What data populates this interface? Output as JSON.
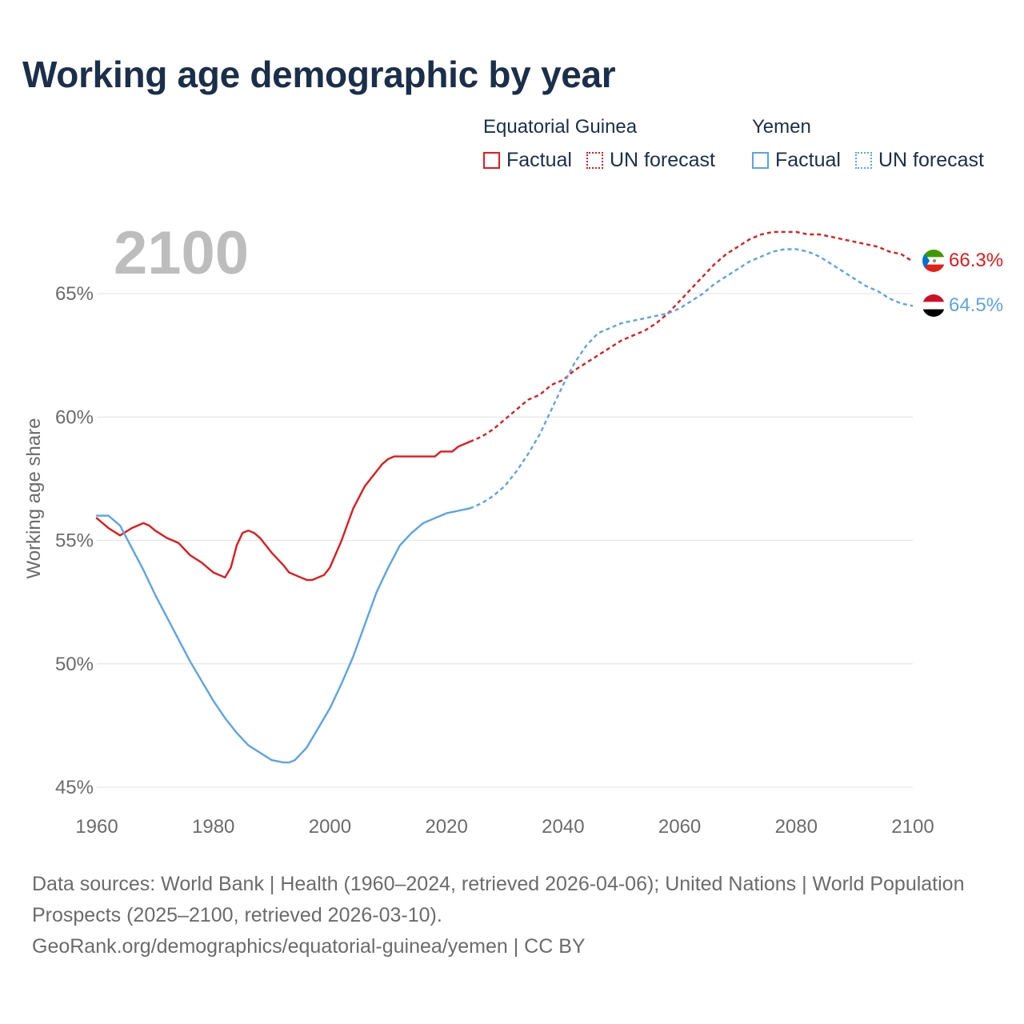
{
  "title": "Working age demographic by year",
  "year_label": "2100",
  "legend": {
    "groups": [
      {
        "name": "Equatorial Guinea",
        "color": "#e31a1c",
        "items": [
          {
            "label": "Factual",
            "style": "solid"
          },
          {
            "label": "UN forecast",
            "style": "dotted"
          }
        ]
      },
      {
        "name": "Yemen",
        "color": "#5ba4e6",
        "items": [
          {
            "label": "Factual",
            "style": "solid"
          },
          {
            "label": "UN forecast",
            "style": "dotted"
          }
        ]
      }
    ]
  },
  "footer": {
    "sources": "Data sources: World Bank | Health (1960–2024, retrieved 2026-04-06); United Nations | World Population Prospects (2025–2100, retrieved 2026-03-10).",
    "credit": "GeoRank.org/demographics/equatorial-guinea/yemen | CC BY"
  },
  "chart_data": {
    "type": "line",
    "title": "Working age demographic by year",
    "xlabel": "",
    "ylabel": "Working age share",
    "xlim": [
      1960,
      2100
    ],
    "ylim": [
      45,
      68
    ],
    "x_ticks": [
      1960,
      1980,
      2000,
      2020,
      2040,
      2060,
      2080,
      2100
    ],
    "x_tick_labels": [
      "1960",
      "1980",
      "2000",
      "2020",
      "2040",
      "2060",
      "2080",
      "2100"
    ],
    "y_ticks": [
      45,
      50,
      55,
      60,
      65
    ],
    "y_tick_labels": [
      "45%",
      "50%",
      "55%",
      "60%",
      "65%"
    ],
    "grid": true,
    "series": [
      {
        "name": "Equatorial Guinea",
        "kind": "Factual",
        "color": "#e31a1c",
        "dash": "solid",
        "points": [
          [
            1960,
            55.9
          ],
          [
            1962,
            55.5
          ],
          [
            1964,
            55.2
          ],
          [
            1966,
            55.5
          ],
          [
            1968,
            55.7
          ],
          [
            1969,
            55.6
          ],
          [
            1970,
            55.4
          ],
          [
            1972,
            55.1
          ],
          [
            1974,
            54.9
          ],
          [
            1976,
            54.4
          ],
          [
            1978,
            54.1
          ],
          [
            1980,
            53.7
          ],
          [
            1982,
            53.5
          ],
          [
            1983,
            53.9
          ],
          [
            1984,
            54.8
          ],
          [
            1985,
            55.3
          ],
          [
            1986,
            55.4
          ],
          [
            1987,
            55.3
          ],
          [
            1988,
            55.1
          ],
          [
            1990,
            54.5
          ],
          [
            1992,
            54.0
          ],
          [
            1993,
            53.7
          ],
          [
            1995,
            53.5
          ],
          [
            1996,
            53.4
          ],
          [
            1997,
            53.4
          ],
          [
            1999,
            53.6
          ],
          [
            2000,
            53.9
          ],
          [
            2002,
            55.0
          ],
          [
            2004,
            56.3
          ],
          [
            2006,
            57.2
          ],
          [
            2008,
            57.8
          ],
          [
            2009,
            58.1
          ],
          [
            2010,
            58.3
          ],
          [
            2011,
            58.4
          ],
          [
            2014,
            58.4
          ],
          [
            2016,
            58.4
          ],
          [
            2018,
            58.4
          ],
          [
            2019,
            58.6
          ],
          [
            2021,
            58.6
          ],
          [
            2022,
            58.8
          ],
          [
            2024,
            59.0
          ]
        ]
      },
      {
        "name": "Equatorial Guinea",
        "kind": "UN forecast",
        "color": "#e31a1c",
        "dash": "dashed",
        "points": [
          [
            2024,
            59.0
          ],
          [
            2026,
            59.2
          ],
          [
            2028,
            59.5
          ],
          [
            2030,
            59.9
          ],
          [
            2032,
            60.3
          ],
          [
            2034,
            60.7
          ],
          [
            2036,
            60.9
          ],
          [
            2038,
            61.3
          ],
          [
            2040,
            61.5
          ],
          [
            2042,
            61.9
          ],
          [
            2044,
            62.2
          ],
          [
            2046,
            62.5
          ],
          [
            2048,
            62.8
          ],
          [
            2050,
            63.1
          ],
          [
            2052,
            63.3
          ],
          [
            2054,
            63.5
          ],
          [
            2056,
            63.8
          ],
          [
            2058,
            64.2
          ],
          [
            2060,
            64.7
          ],
          [
            2062,
            65.2
          ],
          [
            2064,
            65.7
          ],
          [
            2066,
            66.2
          ],
          [
            2068,
            66.6
          ],
          [
            2070,
            66.9
          ],
          [
            2072,
            67.2
          ],
          [
            2074,
            67.4
          ],
          [
            2076,
            67.5
          ],
          [
            2078,
            67.5
          ],
          [
            2080,
            67.5
          ],
          [
            2082,
            67.4
          ],
          [
            2084,
            67.4
          ],
          [
            2086,
            67.3
          ],
          [
            2088,
            67.2
          ],
          [
            2090,
            67.1
          ],
          [
            2092,
            67.0
          ],
          [
            2094,
            66.9
          ],
          [
            2096,
            66.7
          ],
          [
            2098,
            66.6
          ],
          [
            2100,
            66.3
          ]
        ]
      },
      {
        "name": "Yemen",
        "kind": "Factual",
        "color": "#5ba4e6",
        "dash": "solid",
        "points": [
          [
            1960,
            56.0
          ],
          [
            1962,
            56.0
          ],
          [
            1964,
            55.6
          ],
          [
            1966,
            54.7
          ],
          [
            1968,
            53.8
          ],
          [
            1970,
            52.8
          ],
          [
            1972,
            51.9
          ],
          [
            1974,
            51.0
          ],
          [
            1976,
            50.1
          ],
          [
            1978,
            49.3
          ],
          [
            1980,
            48.5
          ],
          [
            1982,
            47.8
          ],
          [
            1984,
            47.2
          ],
          [
            1986,
            46.7
          ],
          [
            1988,
            46.4
          ],
          [
            1990,
            46.1
          ],
          [
            1992,
            46.0
          ],
          [
            1993,
            46.0
          ],
          [
            1994,
            46.1
          ],
          [
            1996,
            46.6
          ],
          [
            1998,
            47.4
          ],
          [
            2000,
            48.2
          ],
          [
            2002,
            49.2
          ],
          [
            2004,
            50.3
          ],
          [
            2006,
            51.6
          ],
          [
            2008,
            52.9
          ],
          [
            2010,
            53.9
          ],
          [
            2012,
            54.8
          ],
          [
            2014,
            55.3
          ],
          [
            2016,
            55.7
          ],
          [
            2018,
            55.9
          ],
          [
            2020,
            56.1
          ],
          [
            2022,
            56.2
          ],
          [
            2024,
            56.3
          ]
        ]
      },
      {
        "name": "Yemen",
        "kind": "UN forecast",
        "color": "#5ba4e6",
        "dash": "dashed",
        "points": [
          [
            2024,
            56.3
          ],
          [
            2026,
            56.5
          ],
          [
            2028,
            56.8
          ],
          [
            2030,
            57.2
          ],
          [
            2032,
            57.8
          ],
          [
            2034,
            58.5
          ],
          [
            2036,
            59.3
          ],
          [
            2038,
            60.3
          ],
          [
            2040,
            61.3
          ],
          [
            2042,
            62.2
          ],
          [
            2044,
            62.9
          ],
          [
            2046,
            63.4
          ],
          [
            2048,
            63.6
          ],
          [
            2050,
            63.8
          ],
          [
            2052,
            63.9
          ],
          [
            2054,
            64.0
          ],
          [
            2056,
            64.1
          ],
          [
            2058,
            64.2
          ],
          [
            2060,
            64.4
          ],
          [
            2062,
            64.7
          ],
          [
            2064,
            65.0
          ],
          [
            2066,
            65.4
          ],
          [
            2068,
            65.7
          ],
          [
            2070,
            66.0
          ],
          [
            2072,
            66.3
          ],
          [
            2074,
            66.5
          ],
          [
            2076,
            66.7
          ],
          [
            2078,
            66.8
          ],
          [
            2080,
            66.8
          ],
          [
            2082,
            66.7
          ],
          [
            2084,
            66.5
          ],
          [
            2086,
            66.2
          ],
          [
            2088,
            65.9
          ],
          [
            2090,
            65.6
          ],
          [
            2092,
            65.3
          ],
          [
            2094,
            65.1
          ],
          [
            2096,
            64.8
          ],
          [
            2098,
            64.6
          ],
          [
            2100,
            64.5
          ]
        ]
      }
    ],
    "end_labels": [
      {
        "country": "Equatorial Guinea",
        "text": "66.3%",
        "value": 66.3,
        "color": "#e31a1c",
        "flag": "equatorial-guinea-flag-icon"
      },
      {
        "country": "Yemen",
        "text": "64.5%",
        "value": 64.5,
        "color": "#5ba4e6",
        "flag": "yemen-flag-icon"
      }
    ]
  }
}
